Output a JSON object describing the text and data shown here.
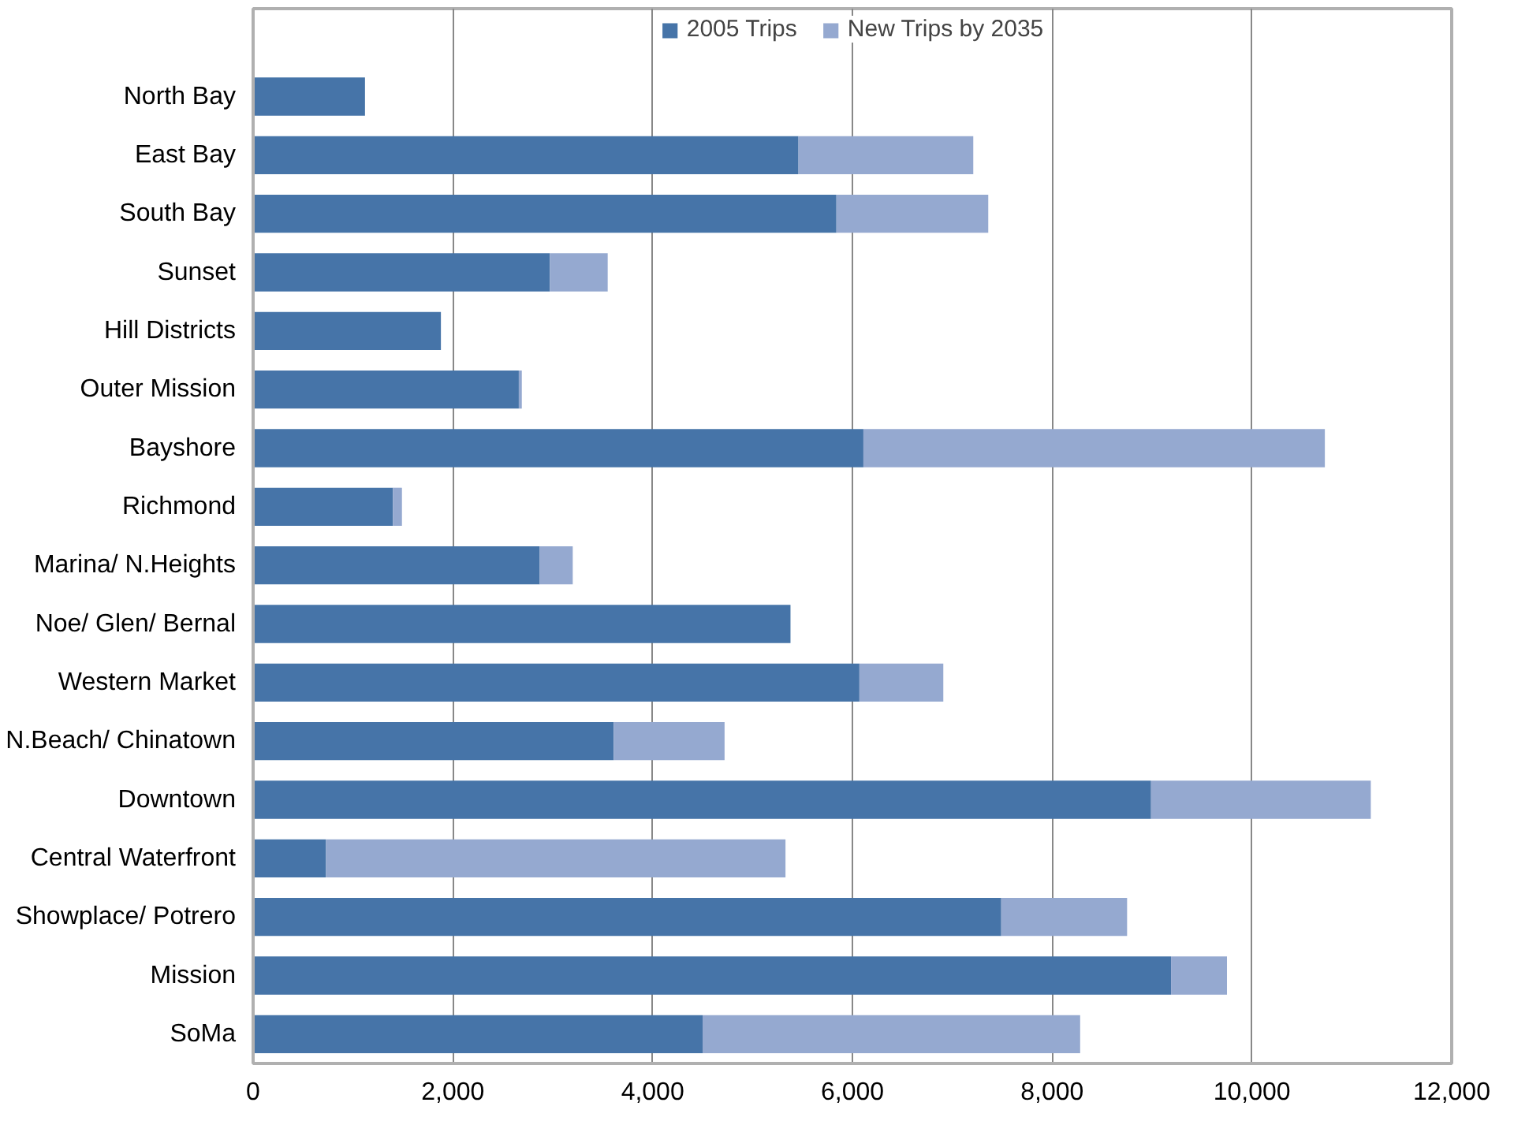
{
  "chart_data": {
    "type": "bar",
    "orientation": "horizontal",
    "stacked": true,
    "categories": [
      "North Bay",
      "East Bay",
      "South Bay",
      "Sunset",
      "Hill Districts",
      "Outer Mission",
      "Bayshore",
      "Richmond",
      "Marina/ N.Heights",
      "Noe/ Glen/ Bernal",
      "Western Market",
      "N.Beach/ Chinatown",
      "Downtown",
      "Central Waterfront",
      "Showplace/ Potrero",
      "Mission",
      "SoMa"
    ],
    "series": [
      {
        "name": "2005 Trips",
        "color": "#4674a8",
        "values": [
          1120,
          5460,
          5840,
          2970,
          1880,
          2660,
          6110,
          1400,
          2870,
          5380,
          6070,
          3610,
          8990,
          730,
          7490,
          9190,
          4500
        ]
      },
      {
        "name": "New Trips by 2035",
        "color": "#95a9d0",
        "values": [
          0,
          1750,
          1520,
          580,
          0,
          30,
          4620,
          90,
          330,
          0,
          840,
          1110,
          2200,
          4600,
          1260,
          560,
          3780
        ]
      }
    ],
    "xlim": [
      0,
      12000
    ],
    "xticks": [
      {
        "value": 0,
        "label": "0"
      },
      {
        "value": 2000,
        "label": "2,000"
      },
      {
        "value": 4000,
        "label": "4,000"
      },
      {
        "value": 6000,
        "label": "6,000"
      },
      {
        "value": 8000,
        "label": "8,000"
      },
      {
        "value": 10000,
        "label": "10,000"
      },
      {
        "value": 12000,
        "label": "12,000"
      }
    ],
    "grid": "x",
    "legend": "top"
  }
}
